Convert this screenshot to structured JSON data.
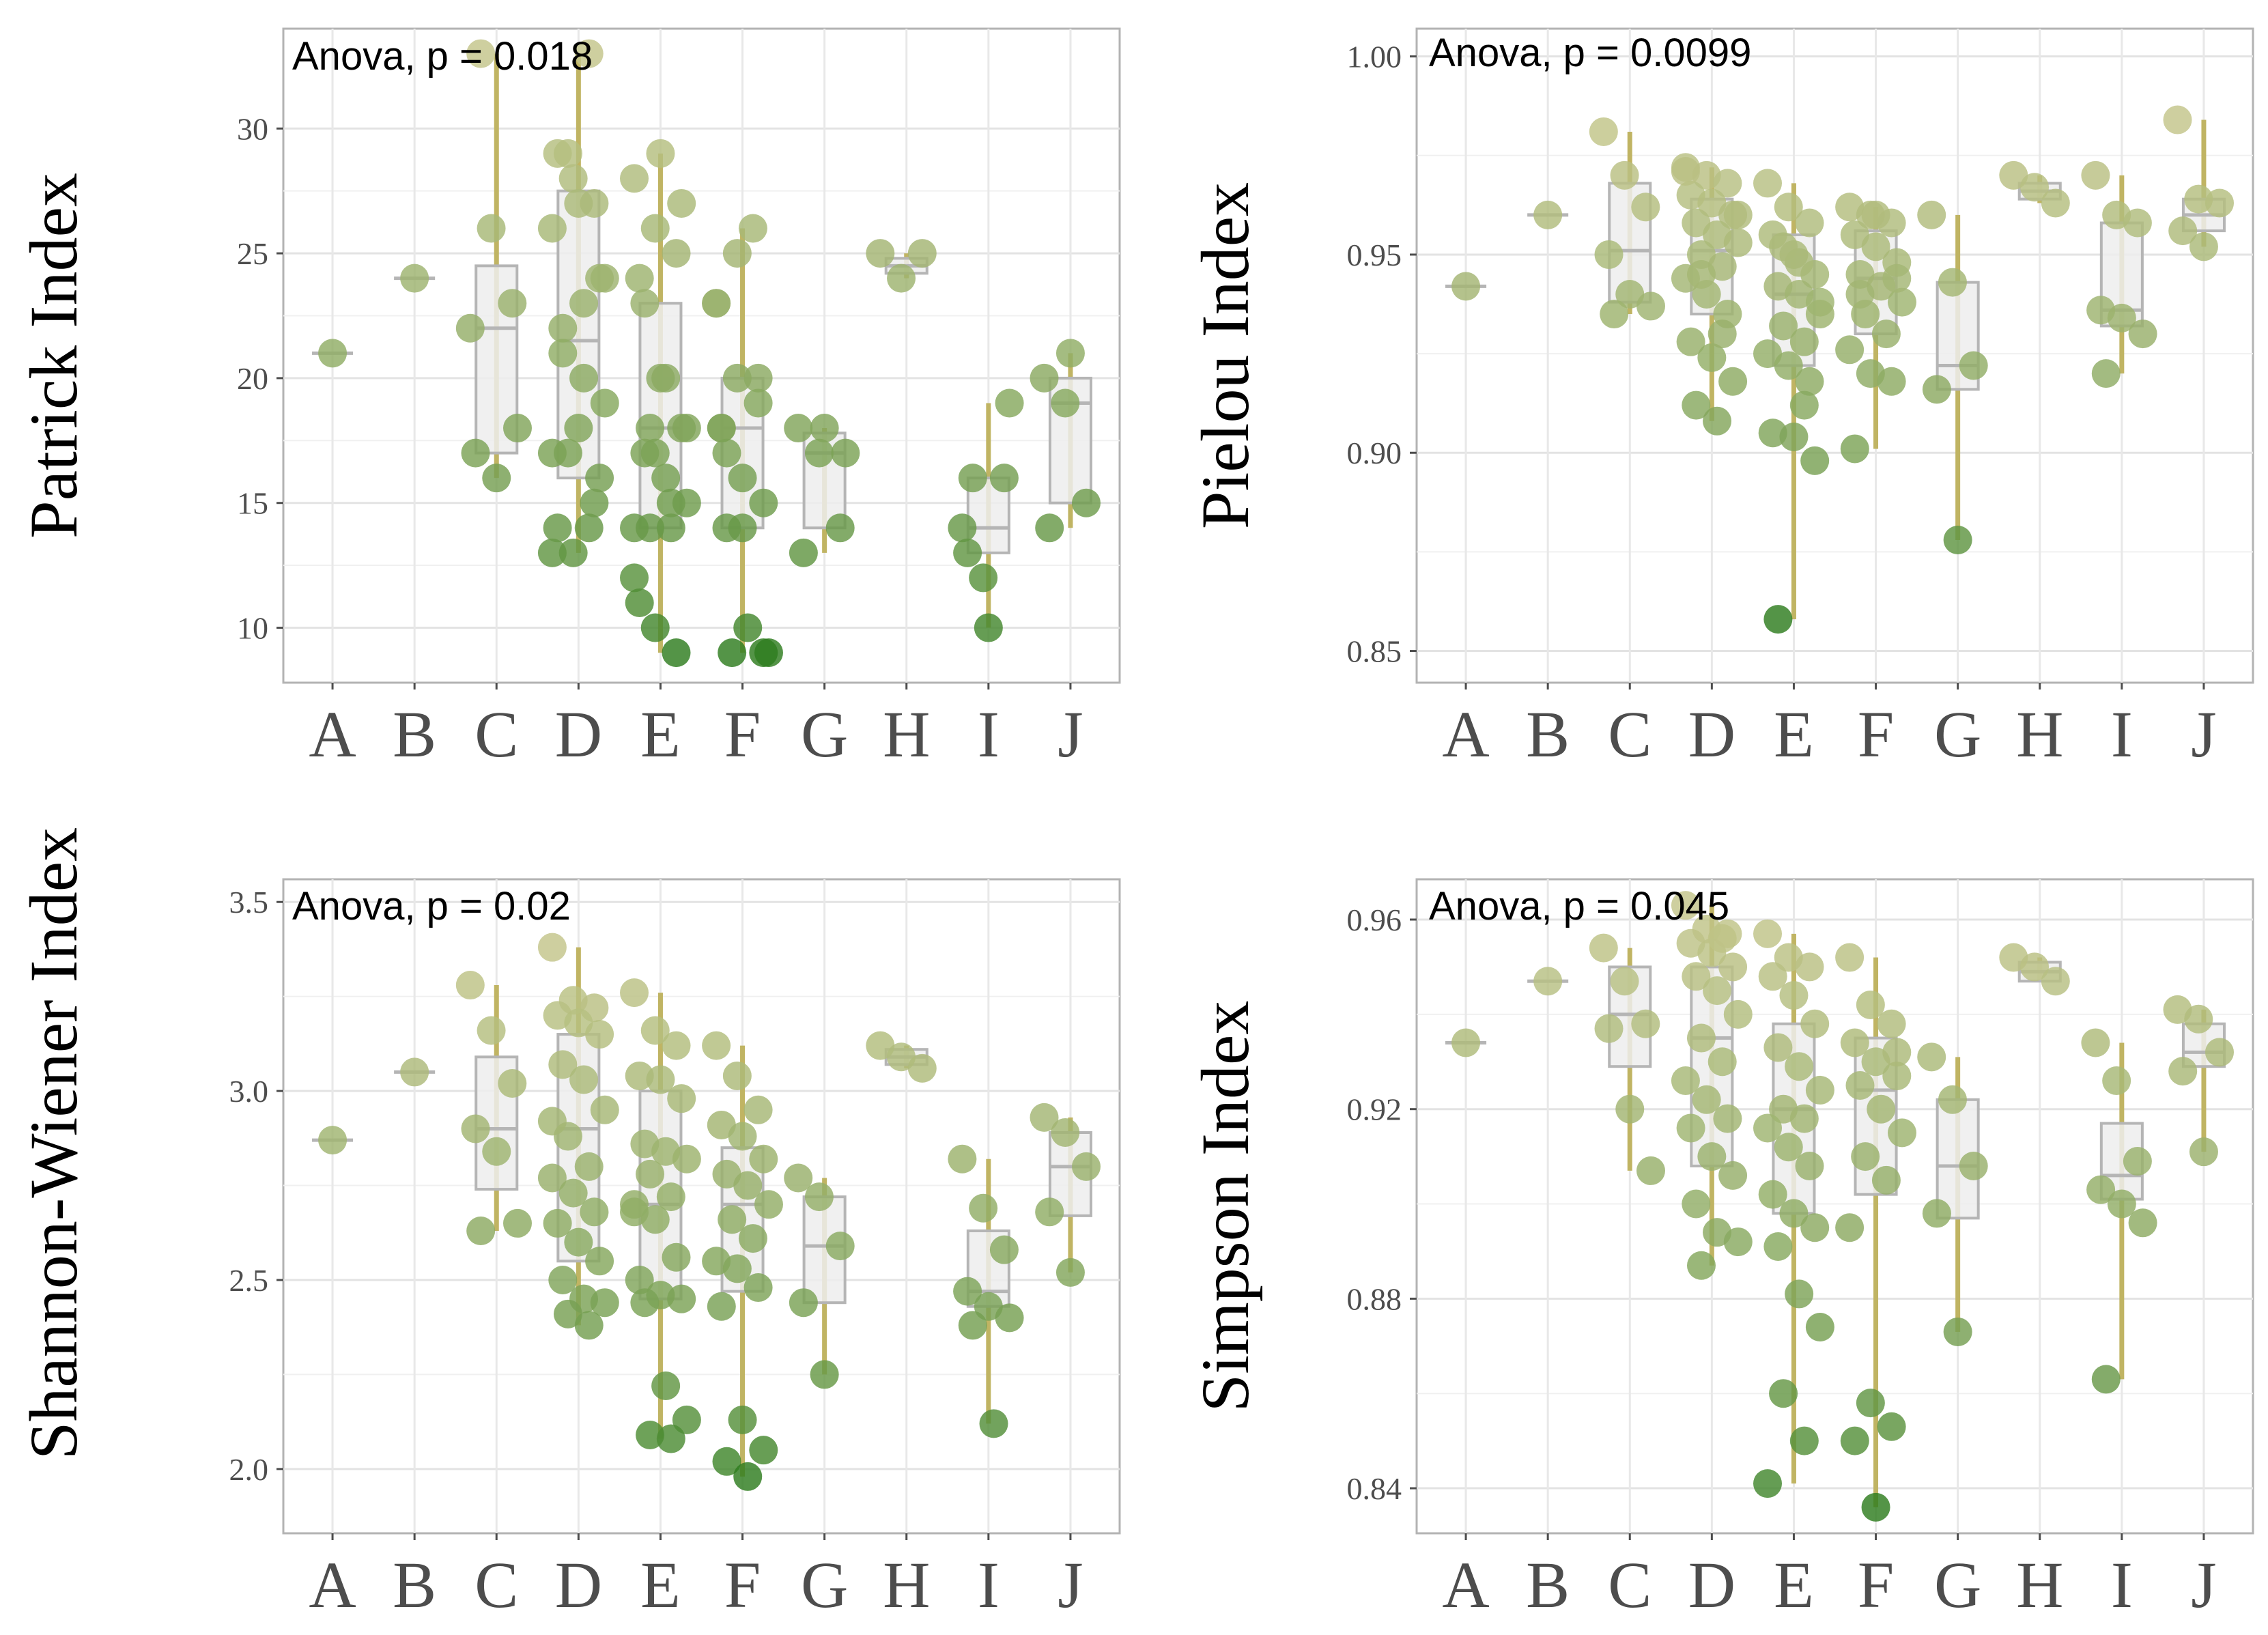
{
  "chart_data": [
    {
      "type": "scatter",
      "ylabel": "Patrick Index",
      "annotation": "Anova, p = 0.018",
      "categories": [
        "A",
        "B",
        "C",
        "D",
        "E",
        "F",
        "G",
        "H",
        "I",
        "J"
      ],
      "ylim": [
        7.8,
        34
      ],
      "yticks": [
        10,
        15,
        20,
        25,
        30
      ],
      "ytick_labels": [
        "10",
        "15",
        "20",
        "25",
        "30"
      ],
      "grid": true,
      "color_low": "#2e7d1e",
      "color_high": "#c3c58a",
      "values": [
        [
          21
        ],
        [
          24
        ],
        [
          22,
          26,
          23,
          17,
          16,
          18,
          33
        ],
        [
          26,
          28,
          27,
          29,
          27,
          24,
          22,
          20,
          19,
          17,
          14,
          13,
          13,
          15,
          14,
          18,
          16,
          21,
          23,
          24,
          29,
          33,
          17
        ],
        [
          28,
          26,
          25,
          24,
          20,
          18,
          17,
          16,
          15,
          14,
          14,
          12,
          10,
          9,
          11,
          29,
          27,
          23,
          20,
          18,
          18,
          15,
          14,
          17
        ],
        [
          23,
          25,
          20,
          18,
          16,
          15,
          14,
          10,
          9,
          9,
          26,
          23,
          20,
          19,
          18,
          14,
          9,
          17
        ],
        [
          18,
          17,
          14,
          13,
          18,
          17
        ],
        [
          25,
          24,
          25
        ],
        [
          14,
          12,
          16,
          13,
          10,
          19,
          16
        ],
        [
          20,
          19,
          15,
          14,
          21
        ]
      ],
      "boxes": [
        null,
        null,
        {
          "q1": 17,
          "median": 22,
          "q3": 24.5
        },
        {
          "q1": 16,
          "median": 21.5,
          "q3": 27.5
        },
        {
          "q1": 14,
          "median": 18,
          "q3": 23
        },
        {
          "q1": 14,
          "median": 18,
          "q3": 20
        },
        {
          "q1": 14,
          "median": 17,
          "q3": 17.8
        },
        {
          "q1": 24.2,
          "median": 24.5,
          "q3": 24.8
        },
        {
          "q1": 13,
          "median": 14,
          "q3": 16
        },
        {
          "q1": 15,
          "median": 19,
          "q3": 20
        }
      ]
    },
    {
      "type": "scatter",
      "ylabel": "Pielou Index",
      "annotation": "Anova, p = 0.0099",
      "categories": [
        "A",
        "B",
        "C",
        "D",
        "E",
        "F",
        "G",
        "H",
        "I",
        "J"
      ],
      "ylim": [
        0.842,
        1.007
      ],
      "yticks": [
        0.85,
        0.9,
        0.95,
        1.0
      ],
      "ytick_labels": [
        "0.85",
        "0.90",
        "0.95",
        "1.00"
      ],
      "grid": true,
      "color_low": "#2e7d1e",
      "color_high": "#c3c58a",
      "values": [
        [
          0.942
        ],
        [
          0.96
        ],
        [
          0.981,
          0.97,
          0.962,
          0.95,
          0.94,
          0.937,
          0.935
        ],
        [
          0.972,
          0.97,
          0.968,
          0.965,
          0.963,
          0.96,
          0.958,
          0.955,
          0.953,
          0.95,
          0.947,
          0.944,
          0.94,
          0.935,
          0.928,
          0.924,
          0.918,
          0.912,
          0.908,
          0.96,
          0.945,
          0.93,
          0.971
        ],
        [
          0.968,
          0.962,
          0.958,
          0.955,
          0.95,
          0.945,
          0.942,
          0.94,
          0.935,
          0.932,
          0.928,
          0.925,
          0.922,
          0.918,
          0.905,
          0.904,
          0.898,
          0.858,
          0.948,
          0.938,
          0.952,
          0.912
        ],
        [
          0.962,
          0.96,
          0.958,
          0.955,
          0.952,
          0.948,
          0.945,
          0.942,
          0.938,
          0.935,
          0.93,
          0.926,
          0.92,
          0.918,
          0.901,
          0.96,
          0.944,
          0.94
        ],
        [
          0.96,
          0.943,
          0.922,
          0.916,
          0.878
        ],
        [
          0.97,
          0.967,
          0.963
        ],
        [
          0.97,
          0.96,
          0.958,
          0.936,
          0.934,
          0.93,
          0.92
        ],
        [
          0.984,
          0.964,
          0.963,
          0.956,
          0.952
        ]
      ],
      "boxes": [
        null,
        null,
        {
          "q1": 0.938,
          "median": 0.951,
          "q3": 0.968
        },
        {
          "q1": 0.935,
          "median": 0.951,
          "q3": 0.964
        },
        {
          "q1": 0.922,
          "median": 0.94,
          "q3": 0.955
        },
        {
          "q1": 0.93,
          "median": 0.944,
          "q3": 0.956
        },
        {
          "q1": 0.916,
          "median": 0.922,
          "q3": 0.943
        },
        {
          "q1": 0.964,
          "median": 0.966,
          "q3": 0.968
        },
        {
          "q1": 0.932,
          "median": 0.936,
          "q3": 0.958
        },
        {
          "q1": 0.956,
          "median": 0.96,
          "q3": 0.964
        }
      ]
    },
    {
      "type": "scatter",
      "ylabel": "Shannon-Wiener Index",
      "annotation": "Anova, p = 0.02",
      "categories": [
        "A",
        "B",
        "C",
        "D",
        "E",
        "F",
        "G",
        "H",
        "I",
        "J"
      ],
      "ylim": [
        1.83,
        3.56
      ],
      "yticks": [
        2.0,
        2.5,
        3.0,
        3.5
      ],
      "ytick_labels": [
        "2.0",
        "2.5",
        "3.0",
        "3.5"
      ],
      "grid": true,
      "color_low": "#2e7d1e",
      "color_high": "#c3c58a",
      "values": [
        [
          2.87
        ],
        [
          3.05
        ],
        [
          3.28,
          3.16,
          3.02,
          2.9,
          2.84,
          2.65,
          2.63
        ],
        [
          3.38,
          3.24,
          3.22,
          3.2,
          3.18,
          3.15,
          3.07,
          3.03,
          2.95,
          2.88,
          2.8,
          2.77,
          2.73,
          2.68,
          2.65,
          2.6,
          2.55,
          2.5,
          2.45,
          2.44,
          2.41,
          2.38,
          2.92
        ],
        [
          3.26,
          3.16,
          3.12,
          3.04,
          3.03,
          2.98,
          2.86,
          2.84,
          2.82,
          2.78,
          2.72,
          2.7,
          2.66,
          2.56,
          2.5,
          2.46,
          2.45,
          2.44,
          2.22,
          2.13,
          2.09,
          2.08,
          2.68
        ],
        [
          3.12,
          3.04,
          2.95,
          2.91,
          2.88,
          2.82,
          2.78,
          2.75,
          2.7,
          2.66,
          2.61,
          2.55,
          2.53,
          2.48,
          2.43,
          2.13,
          2.05,
          2.02,
          1.98
        ],
        [
          2.77,
          2.72,
          2.59,
          2.44,
          2.25
        ],
        [
          3.12,
          3.09,
          3.06
        ],
        [
          2.82,
          2.69,
          2.58,
          2.47,
          2.43,
          2.4,
          2.38,
          2.12
        ],
        [
          2.93,
          2.89,
          2.8,
          2.68,
          2.52
        ]
      ],
      "boxes": [
        null,
        null,
        {
          "q1": 2.74,
          "median": 2.9,
          "q3": 3.09
        },
        {
          "q1": 2.55,
          "median": 2.9,
          "q3": 3.15
        },
        {
          "q1": 2.45,
          "median": 2.7,
          "q3": 3.0
        },
        {
          "q1": 2.47,
          "median": 2.7,
          "q3": 2.85
        },
        {
          "q1": 2.44,
          "median": 2.59,
          "q3": 2.72
        },
        {
          "q1": 3.07,
          "median": 3.09,
          "q3": 3.11
        },
        {
          "q1": 2.43,
          "median": 2.47,
          "q3": 2.63
        },
        {
          "q1": 2.67,
          "median": 2.8,
          "q3": 2.89
        }
      ]
    },
    {
      "type": "scatter",
      "ylabel": "Simpson Index",
      "annotation": "Anova, p = 0.045",
      "categories": [
        "A",
        "B",
        "C",
        "D",
        "E",
        "F",
        "G",
        "H",
        "I",
        "J"
      ],
      "ylim": [
        0.8305,
        0.9685
      ],
      "yticks": [
        0.84,
        0.88,
        0.92,
        0.96
      ],
      "ytick_labels": [
        "0.84",
        "0.88",
        "0.92",
        "0.96"
      ],
      "grid": true,
      "color_low": "#2e7d1e",
      "color_high": "#c3c58a",
      "values": [
        [
          0.934
        ],
        [
          0.947
        ],
        [
          0.954,
          0.947,
          0.938,
          0.937,
          0.92,
          0.907
        ],
        [
          0.963,
          0.958,
          0.957,
          0.955,
          0.953,
          0.95,
          0.948,
          0.945,
          0.94,
          0.935,
          0.93,
          0.926,
          0.922,
          0.918,
          0.916,
          0.91,
          0.906,
          0.9,
          0.894,
          0.892,
          0.887,
          0.956
        ],
        [
          0.957,
          0.952,
          0.95,
          0.948,
          0.944,
          0.938,
          0.933,
          0.929,
          0.924,
          0.92,
          0.918,
          0.916,
          0.912,
          0.908,
          0.902,
          0.898,
          0.895,
          0.891,
          0.881,
          0.874,
          0.86,
          0.85,
          0.841
        ],
        [
          0.952,
          0.942,
          0.938,
          0.934,
          0.93,
          0.927,
          0.925,
          0.92,
          0.915,
          0.91,
          0.905,
          0.895,
          0.858,
          0.853,
          0.85,
          0.836,
          0.932
        ],
        [
          0.931,
          0.922,
          0.908,
          0.898,
          0.873
        ],
        [
          0.952,
          0.95,
          0.947
        ],
        [
          0.934,
          0.926,
          0.909,
          0.903,
          0.9,
          0.896,
          0.863
        ],
        [
          0.941,
          0.939,
          0.932,
          0.928,
          0.911
        ]
      ],
      "boxes": [
        null,
        null,
        {
          "q1": 0.929,
          "median": 0.94,
          "q3": 0.95
        },
        {
          "q1": 0.908,
          "median": 0.935,
          "q3": 0.95
        },
        {
          "q1": 0.898,
          "median": 0.92,
          "q3": 0.938
        },
        {
          "q1": 0.902,
          "median": 0.924,
          "q3": 0.935
        },
        {
          "q1": 0.897,
          "median": 0.908,
          "q3": 0.922
        },
        {
          "q1": 0.947,
          "median": 0.949,
          "q3": 0.951
        },
        {
          "q1": 0.901,
          "median": 0.906,
          "q3": 0.917
        },
        {
          "q1": 0.929,
          "median": 0.932,
          "q3": 0.938
        }
      ]
    }
  ]
}
